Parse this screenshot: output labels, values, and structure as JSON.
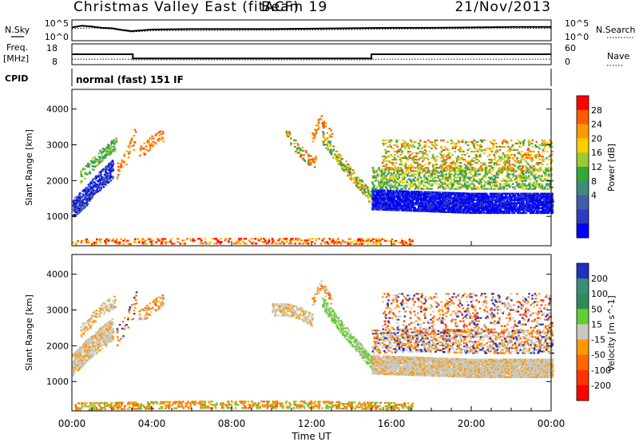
{
  "header": {
    "station": "Christmas Valley East (fitACF)",
    "beam": "Beam 19",
    "date": "21/Nov/2013"
  },
  "side_labels": {
    "nsky": "N.Sky",
    "nsearch": "N.Search",
    "freq_line1": "Freq.",
    "freq_line2": "[MHz]",
    "nave": "Nave",
    "cpid": "CPID",
    "mode": "normal (fast) 151 IF"
  },
  "noise_axis": {
    "left_ticks": [
      "10^5",
      "10^0"
    ],
    "right_ticks": [
      "10^5",
      "10^0"
    ]
  },
  "freq_axis": {
    "left_ticks": [
      "18",
      "8"
    ],
    "right_ticks": [
      "60",
      "0"
    ]
  },
  "chart_data": [
    {
      "type": "line",
      "panel": "noise",
      "series": [
        {
          "name": "N.Sky",
          "x": [
            0,
            0.5,
            1.0,
            1.5,
            2.0,
            2.5,
            3.0,
            4.0,
            6.0,
            8.0,
            10.0,
            12.0,
            14.0,
            16.0,
            18.0,
            20.0,
            22.0,
            24.0
          ],
          "values": [
            3.2,
            3.6,
            3.4,
            3.1,
            3.0,
            2.6,
            2.3,
            2.7,
            2.8,
            2.8,
            2.8,
            2.9,
            3.0,
            3.1,
            3.1,
            3.2,
            3.3,
            3.3
          ]
        },
        {
          "name": "N.Search",
          "x": [
            0,
            1.0,
            2.0,
            3.0,
            4.0,
            8.0,
            12.0,
            16.0,
            20.0,
            24.0
          ],
          "values": [
            2.9,
            3.1,
            2.8,
            2.1,
            2.4,
            2.5,
            2.6,
            2.8,
            2.9,
            3.0
          ]
        }
      ]
    },
    {
      "type": "line",
      "panel": "frequency",
      "series": [
        {
          "name": "Freq",
          "x": [
            0,
            3.05,
            3.05,
            15.0,
            15.0,
            24.0
          ],
          "values": [
            13,
            13,
            11,
            11,
            13,
            13
          ]
        },
        {
          "name": "Nave",
          "x": [
            0,
            3.05,
            3.05,
            15.0,
            15.0,
            24.0
          ],
          "values": [
            16,
            16,
            14,
            14,
            16,
            16
          ]
        }
      ]
    },
    {
      "type": "heatmap",
      "panel": "power",
      "ylabel": "Slant Range [km]",
      "xlim": [
        0,
        24
      ],
      "ylim": [
        180,
        4550
      ],
      "yticks": [
        1000,
        2000,
        3000,
        4000
      ],
      "colorbar": {
        "label": "Power [dB]",
        "ticks": [
          "28",
          "24",
          "20",
          "16",
          "12",
          "8",
          "4"
        ],
        "colors": [
          "#ff0000",
          "#ff5a00",
          "#ff9900",
          "#ffcc00",
          "#99cc33",
          "#33aa33",
          "#3c8c78",
          "#3f5fa8",
          "#2f3bbf",
          "#0000ff"
        ]
      },
      "regions": [
        {
          "t": [
            0.0,
            0.6,
            1.2,
            2.0
          ],
          "r": [
            1200,
            1500,
            1900,
            2300
          ],
          "w": 500,
          "c": [
            9,
            8,
            7
          ],
          "d": 0.7
        },
        {
          "t": [
            0.4,
            0.9,
            1.4,
            2.2
          ],
          "r": [
            2100,
            2400,
            2700,
            3050
          ],
          "w": 350,
          "c": [
            4,
            5,
            6
          ],
          "d": 0.45
        },
        {
          "t": [
            2.2,
            2.6,
            3.0,
            3.2
          ],
          "r": [
            2200,
            2600,
            3000,
            3400
          ],
          "w": 500,
          "c": [
            1,
            2
          ],
          "d": 0.2
        },
        {
          "t": [
            3.3,
            3.6,
            4.0,
            4.5
          ],
          "r": [
            2800,
            2900,
            3100,
            3250
          ],
          "w": 350,
          "c": [
            1,
            2
          ],
          "d": 0.35
        },
        {
          "t": [
            10.7,
            11.2,
            11.8,
            12.2
          ],
          "r": [
            3300,
            2900,
            2600,
            2500
          ],
          "w": 350,
          "c": [
            1,
            2,
            5
          ],
          "d": 0.4
        },
        {
          "t": [
            12.0,
            12.4,
            12.7,
            13.0
          ],
          "r": [
            3200,
            3700,
            3450,
            3200
          ],
          "w": 250,
          "c": [
            1,
            2
          ],
          "d": 0.35
        },
        {
          "t": [
            12.5,
            13.3,
            14.2,
            15.1
          ],
          "r": [
            3200,
            2600,
            2000,
            1400
          ],
          "w": 350,
          "c": [
            2,
            3,
            5,
            6
          ],
          "d": 0.55
        },
        {
          "t": [
            15.0,
            17.5,
            20.0,
            24.0
          ],
          "r": [
            1450,
            1400,
            1350,
            1350
          ],
          "w": 550,
          "c": [
            9,
            8,
            9
          ],
          "d": 0.9
        },
        {
          "t": [
            15.0,
            17.5,
            20.0,
            24.0
          ],
          "r": [
            2050,
            2050,
            2050,
            2050
          ],
          "w": 600,
          "c": [
            4,
            5,
            6,
            3
          ],
          "d": 0.45
        },
        {
          "t": [
            15.5,
            18.0,
            21.0,
            24.0
          ],
          "r": [
            2700,
            2700,
            2700,
            2700
          ],
          "w": 900,
          "c": [
            1,
            2,
            3,
            4,
            5
          ],
          "d": 0.25
        },
        {
          "t": [
            0.0,
            6.0,
            12.0,
            17.0
          ],
          "r": [
            280,
            300,
            300,
            280
          ],
          "w": 160,
          "c": [
            0,
            1,
            2,
            3
          ],
          "d": 0.3
        }
      ]
    },
    {
      "type": "heatmap",
      "panel": "velocity",
      "xlabel": "Time UT",
      "ylabel": "Slant Range [km]",
      "xlim": [
        0,
        24
      ],
      "ylim": [
        180,
        4550
      ],
      "yticks": [
        1000,
        2000,
        3000,
        4000
      ],
      "xticks": [
        "00:00",
        "04:00",
        "08:00",
        "12:00",
        "16:00",
        "20:00",
        "00:00"
      ],
      "colorbar": {
        "label": "Velocity [m s^-1]",
        "ticks": [
          "200",
          "100",
          "50",
          "15",
          "-15",
          "-50",
          "-100",
          "-200"
        ],
        "colors": [
          "#2030c0",
          "#3c8c78",
          "#2e8b57",
          "#66cc33",
          "#c8c8c0",
          "#ff9900",
          "#ff6a00",
          "#ff3300",
          "#ff0000"
        ]
      },
      "regions": [
        {
          "t": [
            0.0,
            0.6,
            1.2,
            2.0
          ],
          "r": [
            1450,
            1800,
            2100,
            2450
          ],
          "w": 600,
          "c": [
            4,
            4,
            5
          ],
          "d": 0.75
        },
        {
          "t": [
            0.4,
            0.9,
            1.4,
            2.2
          ],
          "r": [
            2400,
            2700,
            3000,
            3250
          ],
          "w": 350,
          "c": [
            4,
            5
          ],
          "d": 0.45
        },
        {
          "t": [
            2.2,
            2.6,
            3.0,
            3.2
          ],
          "r": [
            2200,
            2600,
            3000,
            3400
          ],
          "w": 500,
          "c": [
            5,
            6,
            0
          ],
          "d": 0.2
        },
        {
          "t": [
            3.3,
            3.6,
            4.0,
            4.5
          ],
          "r": [
            2800,
            2900,
            3100,
            3250
          ],
          "w": 350,
          "c": [
            5,
            6,
            4
          ],
          "d": 0.35
        },
        {
          "t": [
            10.0,
            10.7,
            11.4,
            12.0
          ],
          "r": [
            3000,
            3000,
            2900,
            2700
          ],
          "w": 350,
          "c": [
            4,
            4,
            5
          ],
          "d": 0.55
        },
        {
          "t": [
            12.0,
            12.4,
            12.7,
            13.0
          ],
          "r": [
            3200,
            3700,
            3450,
            3200
          ],
          "w": 250,
          "c": [
            4,
            5,
            6
          ],
          "d": 0.4
        },
        {
          "t": [
            12.5,
            13.3,
            14.2,
            15.1
          ],
          "r": [
            3200,
            2600,
            2000,
            1400
          ],
          "w": 350,
          "c": [
            3,
            3,
            4
          ],
          "d": 0.65
        },
        {
          "t": [
            15.0,
            17.5,
            20.0,
            24.0
          ],
          "r": [
            1450,
            1400,
            1350,
            1350
          ],
          "w": 500,
          "c": [
            4,
            4,
            4,
            5
          ],
          "d": 0.9
        },
        {
          "t": [
            15.0,
            17.5,
            20.0,
            24.0
          ],
          "r": [
            2100,
            2150,
            2100,
            2100
          ],
          "w": 650,
          "c": [
            4,
            5,
            6,
            0,
            4
          ],
          "d": 0.4
        },
        {
          "t": [
            15.5,
            18.0,
            21.0,
            24.0
          ],
          "r": [
            2900,
            2900,
            2900,
            2900
          ],
          "w": 1100,
          "c": [
            0,
            5,
            6,
            7,
            4
          ],
          "d": 0.18
        },
        {
          "t": [
            0.0,
            6.0,
            12.0,
            17.0
          ],
          "r": [
            300,
            350,
            350,
            300
          ],
          "w": 220,
          "c": [
            5,
            6,
            3
          ],
          "d": 0.4
        }
      ]
    }
  ]
}
